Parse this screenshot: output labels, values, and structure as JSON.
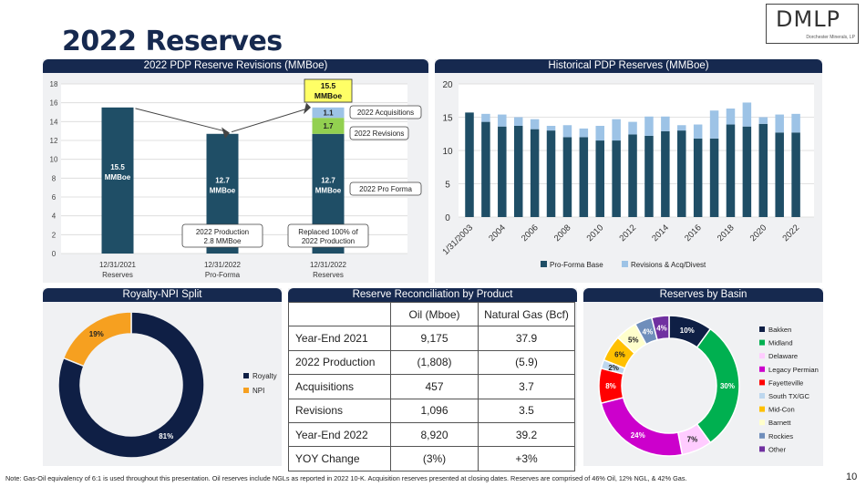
{
  "page": {
    "title": "2022 Reserves",
    "logo_text": "DMLP",
    "logo_sub": "Dorchester Minerals, LP",
    "note": "Note: Gas-Oil equivalency of 6:1 is used throughout this presentation.  Oil reserves include NGLs as reported in 2022 10-K.  Acquisition reserves presented at closing dates.  Reserves are comprised of 46% Oil, 12% NGL, & 42% Gas.",
    "page_number": "10"
  },
  "revisions_panel": {
    "header": "2022 PDP Reserve Revisions (MMBoe)",
    "callouts": {
      "top": "15.5",
      "top2": "MMBoe",
      "acq": "2022 Acquisitions",
      "rev": "2022 Revisions",
      "proforma": "2022 Pro Forma",
      "prod1": "2022 Production",
      "prod2": "2.8 MMBoe",
      "repl1": "Replaced 100% of",
      "repl2": "2022 Production"
    }
  },
  "historical_panel": {
    "header": "Historical PDP Reserves (MMBoe)"
  },
  "royalty_panel": {
    "header": "Royalty-NPI Split"
  },
  "recon_panel": {
    "header": "Reserve Reconciliation by Product",
    "col_oil": "Oil (Mboe)",
    "col_gas": "Natural Gas (Bcf)",
    "rows": [
      {
        "label": "Year-End 2021",
        "oil": "9,175",
        "gas": "37.9"
      },
      {
        "label": "2022 Production",
        "oil": "(1,808)",
        "gas": "(5.9)"
      },
      {
        "label": "Acquisitions",
        "oil": "457",
        "gas": "3.7"
      },
      {
        "label": "Revisions",
        "oil": "1,096",
        "gas": "3.5"
      },
      {
        "label": "Year-End 2022",
        "oil": "8,920",
        "gas": "39.2"
      },
      {
        "label": "YOY Change",
        "oil": "(3%)",
        "gas": "+3%"
      }
    ]
  },
  "basin_panel": {
    "header": "Reserves by Basin"
  },
  "chart_data": [
    {
      "type": "bar",
      "ylim": [
        0,
        18
      ],
      "yticks": [
        0,
        2,
        4,
        6,
        8,
        10,
        12,
        14,
        16,
        18
      ],
      "categories": [
        "12/31/2021 Reserves",
        "12/31/2022 Pro-Forma",
        "12/31/2022 Reserves"
      ],
      "cat_line1": [
        "12/31/2021",
        "12/31/2022",
        "12/31/2022"
      ],
      "cat_line2": [
        "Reserves",
        "Pro-Forma",
        "Reserves"
      ],
      "base_values": [
        15.5,
        12.7,
        12.7
      ],
      "base_labels": [
        "15.5\nMMBoe",
        "12.7\nMMBoe",
        "12.7\nMMBoe"
      ],
      "stack": [
        {
          "name": "2022 Revisions",
          "value": 1.7,
          "label": "1.7",
          "color": "#92d050"
        },
        {
          "name": "2022 Acquisitions",
          "value": 1.1,
          "label": "1.1",
          "color": "#9dc3e6"
        }
      ],
      "bar_color": "#1f4e66"
    },
    {
      "type": "bar",
      "ylim": [
        0,
        20
      ],
      "yticks": [
        0,
        5,
        10,
        15,
        20
      ],
      "x_tick_labels": [
        "1/31/2003",
        "2004",
        "2006",
        "2008",
        "2010",
        "2012",
        "2014",
        "2016",
        "2018",
        "2020",
        "2022"
      ],
      "series": [
        {
          "name": "Pro-Forma Base",
          "color": "#1f4e66",
          "values": [
            15.7,
            14.3,
            13.6,
            13.7,
            13.2,
            13.0,
            12.0,
            12.0,
            11.5,
            11.5,
            12.4,
            12.2,
            12.9,
            13.0,
            11.8,
            11.8,
            13.9,
            13.6,
            14.0,
            12.7,
            12.7
          ]
        },
        {
          "name": "Revisions & Acq/Divest",
          "color": "#9dc3e6",
          "values": [
            0,
            1.2,
            1.8,
            1.3,
            1.5,
            0.7,
            1.8,
            1.3,
            2.2,
            3.2,
            1.9,
            2.9,
            2.2,
            0.8,
            2.1,
            4.2,
            2.4,
            3.6,
            1.0,
            2.7,
            2.8
          ]
        }
      ],
      "legend": "bottom"
    },
    {
      "type": "pie",
      "donut": true,
      "slices": [
        {
          "name": "Royalty",
          "value": 81,
          "label": "81%",
          "color": "#0f1f45"
        },
        {
          "name": "NPI",
          "value": 19,
          "label": "19%",
          "color": "#f6a020"
        }
      ],
      "legend": "right"
    },
    {
      "type": "pie",
      "donut": true,
      "slices": [
        {
          "name": "Bakken",
          "value": 10,
          "label": "10%",
          "color": "#0f1f45"
        },
        {
          "name": "Midland",
          "value": 30,
          "label": "30%",
          "color": "#00b050"
        },
        {
          "name": "Delaware",
          "value": 7,
          "label": "7%",
          "color": "#ffccff"
        },
        {
          "name": "Legacy Permian",
          "value": 24,
          "label": "24%",
          "color": "#cc00cc"
        },
        {
          "name": "Fayetteville",
          "value": 8,
          "label": "8%",
          "color": "#ff0000"
        },
        {
          "name": "South TX/GC",
          "value": 2,
          "label": "2%",
          "color": "#bdd7ee"
        },
        {
          "name": "Mid-Con",
          "value": 6,
          "label": "6%",
          "color": "#ffc000"
        },
        {
          "name": "Barnett",
          "value": 5,
          "label": "5%",
          "color": "#ffffcc"
        },
        {
          "name": "Rockies",
          "value": 4,
          "label": "4%",
          "color": "#6f8ebb"
        },
        {
          "name": "Other",
          "value": 4,
          "label": "4%",
          "color": "#7030a0"
        }
      ],
      "legend": "right"
    }
  ]
}
